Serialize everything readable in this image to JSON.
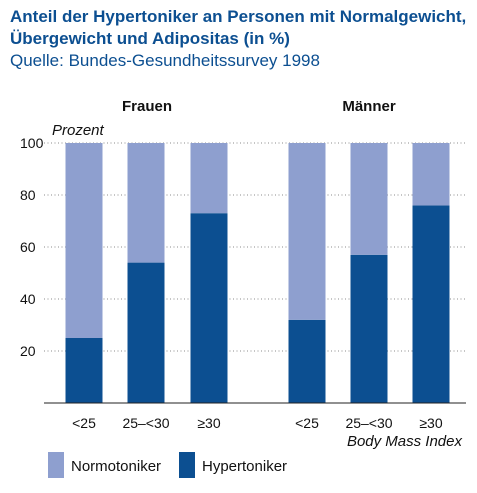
{
  "header": {
    "title_line1": "Anteil der Hypertoniker an Personen mit Normalgewicht,",
    "title_line2": "Übergewicht und Adipositas (in %)",
    "subtitle": "Quelle: Bundes-Gesundheitssurvey 1998"
  },
  "chart_data": {
    "type": "bar",
    "stacked": true,
    "groups": [
      "Frauen",
      "Männer"
    ],
    "categories": [
      "<25",
      "25–<30",
      "≥30"
    ],
    "series": [
      {
        "name": "Hypertoniker",
        "color": "#0c4f91",
        "values": {
          "Frauen": [
            25,
            54,
            73
          ],
          "Männer": [
            32,
            57,
            76
          ]
        }
      },
      {
        "name": "Normotoniker",
        "color": "#8e9fcf",
        "values": {
          "Frauen": [
            75,
            46,
            27
          ],
          "Männer": [
            68,
            43,
            24
          ]
        }
      }
    ],
    "ylabel": "Prozent",
    "xlabel": "Body Mass Index",
    "ylim": [
      0,
      100
    ],
    "yticks": [
      20,
      40,
      60,
      80,
      100
    ],
    "legend": {
      "placement": "bottom-left",
      "items": [
        "Normotoniker",
        "Hypertoniker"
      ]
    }
  }
}
